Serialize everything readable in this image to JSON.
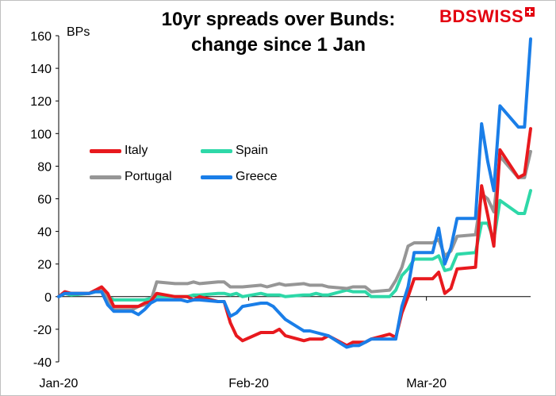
{
  "chart_data": {
    "type": "line",
    "title": "10yr spreads over Bunds: change since 1 Jan",
    "title_lines": [
      "10yr spreads over Bunds:",
      "change since 1 Jan"
    ],
    "ylabel": "BPs",
    "ylim": [
      -40,
      160
    ],
    "yticks": [
      -40,
      -20,
      0,
      20,
      40,
      60,
      80,
      100,
      120,
      140,
      160
    ],
    "xrange": [
      "2020-01-01",
      "2020-03-18"
    ],
    "xticks": [
      {
        "date": "2020-01-01",
        "label": "Jan-20"
      },
      {
        "date": "2020-02-01",
        "label": "Feb-20"
      },
      {
        "date": "2020-03-01",
        "label": "Mar-20"
      }
    ],
    "grid": false,
    "legend_position": "upper-left, inside plot",
    "series": [
      {
        "name": "Italy",
        "color": "#e8191e",
        "points": [
          [
            "2020-01-01",
            0
          ],
          [
            "2020-01-02",
            3
          ],
          [
            "2020-01-03",
            2
          ],
          [
            "2020-01-06",
            2
          ],
          [
            "2020-01-07",
            4
          ],
          [
            "2020-01-08",
            6
          ],
          [
            "2020-01-09",
            2
          ],
          [
            "2020-01-10",
            -6
          ],
          [
            "2020-01-13",
            -6
          ],
          [
            "2020-01-14",
            -6
          ],
          [
            "2020-01-15",
            -4
          ],
          [
            "2020-01-16",
            -3
          ],
          [
            "2020-01-17",
            2
          ],
          [
            "2020-01-20",
            0
          ],
          [
            "2020-01-21",
            0
          ],
          [
            "2020-01-22",
            0
          ],
          [
            "2020-01-23",
            -2
          ],
          [
            "2020-01-24",
            0
          ],
          [
            "2020-01-27",
            -3
          ],
          [
            "2020-01-28",
            -3
          ],
          [
            "2020-01-29",
            -16
          ],
          [
            "2020-01-30",
            -24
          ],
          [
            "2020-01-31",
            -27
          ],
          [
            "2020-02-03",
            -22
          ],
          [
            "2020-02-04",
            -22
          ],
          [
            "2020-02-05",
            -22
          ],
          [
            "2020-02-06",
            -20
          ],
          [
            "2020-02-07",
            -24
          ],
          [
            "2020-02-10",
            -27
          ],
          [
            "2020-02-11",
            -26
          ],
          [
            "2020-02-12",
            -26
          ],
          [
            "2020-02-13",
            -26
          ],
          [
            "2020-02-14",
            -24
          ],
          [
            "2020-02-17",
            -30
          ],
          [
            "2020-02-18",
            -28
          ],
          [
            "2020-02-19",
            -28
          ],
          [
            "2020-02-20",
            -28
          ],
          [
            "2020-02-21",
            -26
          ],
          [
            "2020-02-24",
            -23
          ],
          [
            "2020-02-25",
            -25
          ],
          [
            "2020-02-26",
            -10
          ],
          [
            "2020-02-27",
            0
          ],
          [
            "2020-02-28",
            11
          ],
          [
            "2020-03-02",
            11
          ],
          [
            "2020-03-03",
            15
          ],
          [
            "2020-03-04",
            2
          ],
          [
            "2020-03-05",
            5
          ],
          [
            "2020-03-06",
            17
          ],
          [
            "2020-03-09",
            18
          ],
          [
            "2020-03-10",
            68
          ],
          [
            "2020-03-11",
            50
          ],
          [
            "2020-03-12",
            31
          ],
          [
            "2020-03-13",
            90
          ],
          [
            "2020-03-16",
            73
          ],
          [
            "2020-03-17",
            75
          ],
          [
            "2020-03-18",
            103
          ]
        ]
      },
      {
        "name": "Spain",
        "color": "#2ed8a8",
        "points": [
          [
            "2020-01-01",
            0
          ],
          [
            "2020-01-02",
            2
          ],
          [
            "2020-01-03",
            1
          ],
          [
            "2020-01-06",
            2
          ],
          [
            "2020-01-07",
            3
          ],
          [
            "2020-01-08",
            3
          ],
          [
            "2020-01-09",
            0
          ],
          [
            "2020-01-10",
            -2
          ],
          [
            "2020-01-13",
            -2
          ],
          [
            "2020-01-14",
            -2
          ],
          [
            "2020-01-15",
            -2
          ],
          [
            "2020-01-16",
            -1
          ],
          [
            "2020-01-17",
            0
          ],
          [
            "2020-01-20",
            0
          ],
          [
            "2020-01-21",
            0
          ],
          [
            "2020-01-22",
            0
          ],
          [
            "2020-01-23",
            1
          ],
          [
            "2020-01-24",
            1
          ],
          [
            "2020-01-27",
            2
          ],
          [
            "2020-01-28",
            2
          ],
          [
            "2020-01-29",
            1
          ],
          [
            "2020-01-30",
            2
          ],
          [
            "2020-01-31",
            0
          ],
          [
            "2020-02-03",
            2
          ],
          [
            "2020-02-04",
            1
          ],
          [
            "2020-02-05",
            1
          ],
          [
            "2020-02-06",
            1
          ],
          [
            "2020-02-07",
            0
          ],
          [
            "2020-02-10",
            1
          ],
          [
            "2020-02-11",
            1
          ],
          [
            "2020-02-12",
            2
          ],
          [
            "2020-02-13",
            1
          ],
          [
            "2020-02-14",
            1
          ],
          [
            "2020-02-17",
            4
          ],
          [
            "2020-02-18",
            3
          ],
          [
            "2020-02-19",
            3
          ],
          [
            "2020-02-20",
            3
          ],
          [
            "2020-02-21",
            0
          ],
          [
            "2020-02-24",
            0
          ],
          [
            "2020-02-25",
            4
          ],
          [
            "2020-02-26",
            13
          ],
          [
            "2020-02-27",
            17
          ],
          [
            "2020-02-28",
            23
          ],
          [
            "2020-03-02",
            23
          ],
          [
            "2020-03-03",
            25
          ],
          [
            "2020-03-04",
            16
          ],
          [
            "2020-03-05",
            17
          ],
          [
            "2020-03-06",
            26
          ],
          [
            "2020-03-09",
            27
          ],
          [
            "2020-03-10",
            45
          ],
          [
            "2020-03-11",
            45
          ],
          [
            "2020-03-12",
            35
          ],
          [
            "2020-03-13",
            59
          ],
          [
            "2020-03-16",
            51
          ],
          [
            "2020-03-17",
            51
          ],
          [
            "2020-03-18",
            65
          ]
        ]
      },
      {
        "name": "Portugal",
        "color": "#969696",
        "points": [
          [
            "2020-01-01",
            0
          ],
          [
            "2020-01-02",
            2
          ],
          [
            "2020-01-03",
            2
          ],
          [
            "2020-01-06",
            2
          ],
          [
            "2020-01-07",
            4
          ],
          [
            "2020-01-08",
            4
          ],
          [
            "2020-01-09",
            -2
          ],
          [
            "2020-01-10",
            -8
          ],
          [
            "2020-01-13",
            -8
          ],
          [
            "2020-01-14",
            -6
          ],
          [
            "2020-01-15",
            -5
          ],
          [
            "2020-01-16",
            -3
          ],
          [
            "2020-01-17",
            9
          ],
          [
            "2020-01-20",
            8
          ],
          [
            "2020-01-21",
            8
          ],
          [
            "2020-01-22",
            8
          ],
          [
            "2020-01-23",
            9
          ],
          [
            "2020-01-24",
            8
          ],
          [
            "2020-01-27",
            9
          ],
          [
            "2020-01-28",
            9
          ],
          [
            "2020-01-29",
            6
          ],
          [
            "2020-01-30",
            6
          ],
          [
            "2020-01-31",
            6
          ],
          [
            "2020-02-03",
            7
          ],
          [
            "2020-02-04",
            6
          ],
          [
            "2020-02-05",
            7
          ],
          [
            "2020-02-06",
            8
          ],
          [
            "2020-02-07",
            7
          ],
          [
            "2020-02-10",
            8
          ],
          [
            "2020-02-11",
            7
          ],
          [
            "2020-02-12",
            7
          ],
          [
            "2020-02-13",
            7
          ],
          [
            "2020-02-14",
            6
          ],
          [
            "2020-02-17",
            5
          ],
          [
            "2020-02-18",
            6
          ],
          [
            "2020-02-19",
            6
          ],
          [
            "2020-02-20",
            6
          ],
          [
            "2020-02-21",
            3
          ],
          [
            "2020-02-24",
            4
          ],
          [
            "2020-02-25",
            10
          ],
          [
            "2020-02-26",
            18
          ],
          [
            "2020-02-27",
            31
          ],
          [
            "2020-02-28",
            33
          ],
          [
            "2020-03-02",
            33
          ],
          [
            "2020-03-03",
            35
          ],
          [
            "2020-03-04",
            25
          ],
          [
            "2020-03-05",
            28
          ],
          [
            "2020-03-06",
            37
          ],
          [
            "2020-03-09",
            38
          ],
          [
            "2020-03-10",
            63
          ],
          [
            "2020-03-11",
            60
          ],
          [
            "2020-03-12",
            52
          ],
          [
            "2020-03-13",
            86
          ],
          [
            "2020-03-16",
            73
          ],
          [
            "2020-03-17",
            73
          ],
          [
            "2020-03-18",
            89
          ]
        ]
      },
      {
        "name": "Greece",
        "color": "#1a7ee8",
        "points": [
          [
            "2020-01-01",
            0
          ],
          [
            "2020-01-02",
            2
          ],
          [
            "2020-01-03",
            2
          ],
          [
            "2020-01-06",
            2
          ],
          [
            "2020-01-07",
            3
          ],
          [
            "2020-01-08",
            3
          ],
          [
            "2020-01-09",
            -5
          ],
          [
            "2020-01-10",
            -9
          ],
          [
            "2020-01-13",
            -9
          ],
          [
            "2020-01-14",
            -11
          ],
          [
            "2020-01-15",
            -8
          ],
          [
            "2020-01-16",
            -4
          ],
          [
            "2020-01-17",
            -2
          ],
          [
            "2020-01-20",
            -2
          ],
          [
            "2020-01-21",
            -2
          ],
          [
            "2020-01-22",
            -3
          ],
          [
            "2020-01-23",
            -2
          ],
          [
            "2020-01-24",
            -2
          ],
          [
            "2020-01-27",
            -3
          ],
          [
            "2020-01-28",
            -3
          ],
          [
            "2020-01-29",
            -12
          ],
          [
            "2020-01-30",
            -10
          ],
          [
            "2020-01-31",
            -6
          ],
          [
            "2020-02-03",
            -4
          ],
          [
            "2020-02-04",
            -4
          ],
          [
            "2020-02-05",
            -6
          ],
          [
            "2020-02-06",
            -10
          ],
          [
            "2020-02-07",
            -14
          ],
          [
            "2020-02-10",
            -21
          ],
          [
            "2020-02-11",
            -21
          ],
          [
            "2020-02-12",
            -22
          ],
          [
            "2020-02-13",
            -23
          ],
          [
            "2020-02-14",
            -24
          ],
          [
            "2020-02-17",
            -31
          ],
          [
            "2020-02-18",
            -30
          ],
          [
            "2020-02-19",
            -30
          ],
          [
            "2020-02-20",
            -28
          ],
          [
            "2020-02-21",
            -26
          ],
          [
            "2020-02-24",
            -26
          ],
          [
            "2020-02-25",
            -26
          ],
          [
            "2020-02-26",
            -6
          ],
          [
            "2020-02-27",
            6
          ],
          [
            "2020-02-28",
            27
          ],
          [
            "2020-03-02",
            27
          ],
          [
            "2020-03-03",
            42
          ],
          [
            "2020-03-04",
            20
          ],
          [
            "2020-03-05",
            30
          ],
          [
            "2020-03-06",
            48
          ],
          [
            "2020-03-09",
            48
          ],
          [
            "2020-03-10",
            106
          ],
          [
            "2020-03-11",
            83
          ],
          [
            "2020-03-12",
            65
          ],
          [
            "2020-03-13",
            117
          ],
          [
            "2020-03-16",
            104
          ],
          [
            "2020-03-17",
            104
          ],
          [
            "2020-03-18",
            158
          ]
        ]
      }
    ]
  },
  "branding": {
    "logo_text": "BDSWISS",
    "logo_icon": "plus-badge-icon",
    "logo_color": "#e3000f"
  }
}
